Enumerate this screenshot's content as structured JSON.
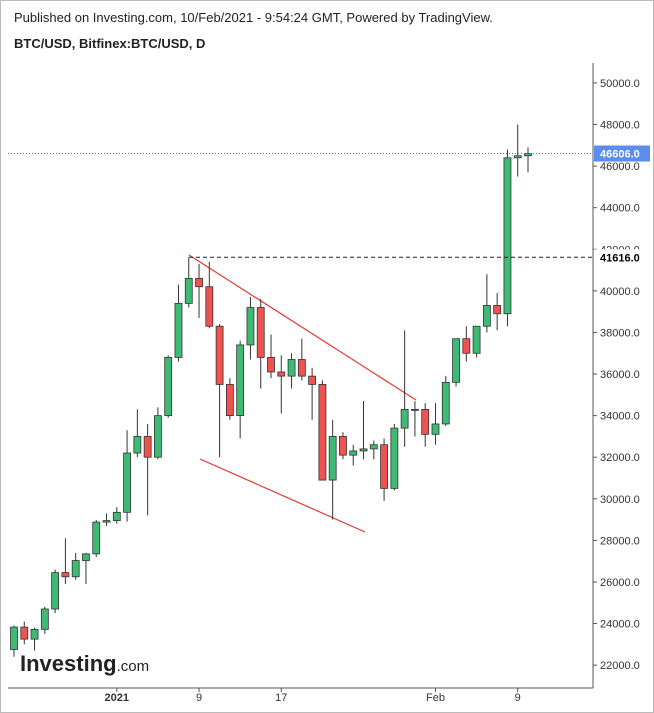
{
  "header": {
    "published": "Published on Investing.com, 10/Feb/2021 - 9:54:24 GMT, Powered by TradingView.",
    "symbol": "BTC/USD, Bitfinex:BTC/USD, D"
  },
  "logo": {
    "name": "Investing",
    "suffix": ".com"
  },
  "chart_data": {
    "type": "candlestick",
    "categories": [
      null,
      null,
      null,
      null,
      null,
      null,
      null,
      null,
      null,
      null,
      "2021",
      null,
      null,
      null,
      null,
      null,
      null,
      null,
      "9",
      null,
      null,
      null,
      null,
      null,
      null,
      null,
      "17",
      null,
      null,
      null,
      null,
      null,
      null,
      null,
      null,
      null,
      null,
      null,
      null,
      null,
      null,
      "Feb",
      null,
      null,
      null,
      null,
      null,
      null,
      null,
      "9",
      null
    ],
    "open": [
      22750,
      23830,
      23250,
      23720,
      24700,
      26450,
      26250,
      27030,
      27350,
      28880,
      28950,
      29350,
      32200,
      33000,
      32000,
      34000,
      36800,
      39400,
      40600,
      40200,
      38300,
      35500,
      34000,
      37400,
      39200,
      36800,
      36100,
      35900,
      36700,
      35900,
      35500,
      30900,
      33000,
      32100,
      32300,
      32400,
      32600,
      30500,
      33400,
      34300,
      34300,
      33100,
      33600,
      35600,
      37700,
      37000,
      38300,
      39300,
      38900,
      46400,
      46500
    ],
    "high": [
      23900,
      24100,
      23800,
      24800,
      26600,
      28100,
      27400,
      27400,
      28980,
      29300,
      29600,
      33300,
      34300,
      33600,
      34400,
      36900,
      40300,
      41616,
      41300,
      41400,
      38400,
      35800,
      37600,
      39700,
      39600,
      37900,
      36900,
      37000,
      37700,
      36300,
      35700,
      33800,
      33200,
      32600,
      34700,
      32800,
      32900,
      33600,
      38100,
      34700,
      34600,
      34600,
      35900,
      37700,
      38300,
      38300,
      40800,
      39900,
      46800,
      48000,
      46900
    ],
    "low": [
      22400,
      23000,
      22700,
      23500,
      24500,
      25900,
      26100,
      25900,
      27200,
      28700,
      28800,
      28900,
      32000,
      29200,
      31900,
      33900,
      36600,
      39200,
      38700,
      38200,
      32000,
      33800,
      32900,
      36700,
      35300,
      35800,
      34100,
      35300,
      35700,
      33800,
      30900,
      29000,
      31900,
      31600,
      31900,
      31900,
      29900,
      30400,
      32500,
      33000,
      32500,
      32600,
      33500,
      35400,
      36600,
      36800,
      38000,
      38100,
      38300,
      45500,
      45700
    ],
    "close": [
      23830,
      23250,
      23720,
      24700,
      26450,
      26250,
      27030,
      27350,
      28880,
      28950,
      29350,
      32200,
      33000,
      32000,
      34000,
      36800,
      39400,
      40600,
      40200,
      38300,
      35500,
      34000,
      37400,
      39200,
      36800,
      36100,
      35900,
      36700,
      35900,
      35500,
      30900,
      33000,
      32100,
      32300,
      32400,
      32600,
      30500,
      33400,
      34300,
      34300,
      33100,
      33600,
      35600,
      37700,
      37000,
      38300,
      39300,
      38900,
      46400,
      46500,
      46606
    ],
    "up_color": "#3dbb75",
    "down_color": "#ef5350",
    "ylim": [
      20900,
      50960
    ],
    "yticks": [
      {
        "value": 22000,
        "label": "22000.0"
      },
      {
        "value": 24000,
        "label": "24000.0"
      },
      {
        "value": 26000,
        "label": "26000.0"
      },
      {
        "value": 28000,
        "label": "28000.0"
      },
      {
        "value": 30000,
        "label": "30000.0"
      },
      {
        "value": 32000,
        "label": "32000.0"
      },
      {
        "value": 34000,
        "label": "34000.0"
      },
      {
        "value": 36000,
        "label": "36000.0"
      },
      {
        "value": 38000,
        "label": "38000.0"
      },
      {
        "value": 40000,
        "label": "40000.0"
      },
      {
        "value": 42000,
        "label": "42000.0"
      },
      {
        "value": 44000,
        "label": "44000.0"
      },
      {
        "value": 46000,
        "label": "46000.0"
      },
      {
        "value": 48000,
        "label": "48000.0"
      },
      {
        "value": 50000,
        "label": "50000.0"
      }
    ],
    "last_price": {
      "value": 46606,
      "label": "46606.0",
      "color": "#5b8def"
    },
    "level": {
      "value": 41616,
      "label": "41616.0"
    }
  }
}
